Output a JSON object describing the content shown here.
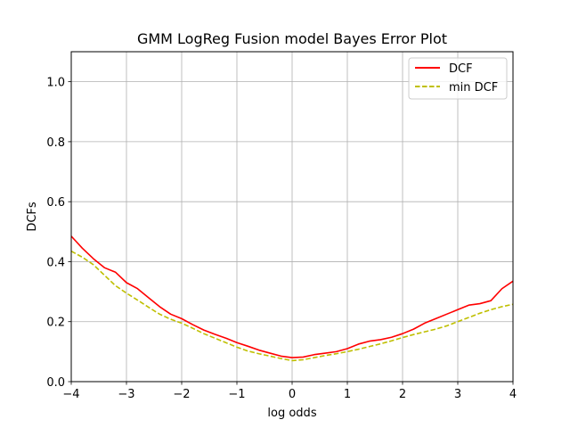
{
  "chart_data": {
    "type": "line",
    "title": "GMM LogReg Fusion model Bayes Error Plot",
    "xlabel": "log odds",
    "ylabel": "DCFs",
    "xlim": [
      -4,
      4
    ],
    "ylim": [
      0,
      1.1
    ],
    "xticks": [
      -4,
      -3,
      -2,
      -1,
      0,
      1,
      2,
      3,
      4
    ],
    "yticks": [
      0.0,
      0.2,
      0.4,
      0.6,
      0.8,
      1.0
    ],
    "xtick_labels": [
      "−4",
      "−3",
      "−2",
      "−1",
      "0",
      "1",
      "2",
      "3",
      "4"
    ],
    "ytick_labels": [
      "0.0",
      "0.2",
      "0.4",
      "0.6",
      "0.8",
      "1.0"
    ],
    "grid": true,
    "legend_position": "top-right",
    "series": [
      {
        "name": "DCF",
        "color": "#ff0000",
        "style": "solid",
        "x": [
          -4.0,
          -3.8,
          -3.6,
          -3.4,
          -3.2,
          -3.0,
          -2.8,
          -2.6,
          -2.4,
          -2.2,
          -2.0,
          -1.8,
          -1.6,
          -1.4,
          -1.2,
          -1.0,
          -0.8,
          -0.6,
          -0.4,
          -0.2,
          0.0,
          0.2,
          0.4,
          0.6,
          0.8,
          1.0,
          1.2,
          1.4,
          1.6,
          1.8,
          2.0,
          2.2,
          2.4,
          2.6,
          2.8,
          3.0,
          3.2,
          3.4,
          3.6,
          3.8,
          4.0
        ],
        "values": [
          0.485,
          0.445,
          0.41,
          0.38,
          0.365,
          0.33,
          0.31,
          0.28,
          0.25,
          0.225,
          0.21,
          0.19,
          0.172,
          0.158,
          0.145,
          0.13,
          0.118,
          0.105,
          0.095,
          0.085,
          0.08,
          0.082,
          0.09,
          0.095,
          0.1,
          0.11,
          0.125,
          0.135,
          0.14,
          0.148,
          0.16,
          0.175,
          0.195,
          0.21,
          0.225,
          0.24,
          0.255,
          0.26,
          0.27,
          0.31,
          0.335
        ]
      },
      {
        "name": "min DCF",
        "color": "#bfbf00",
        "style": "dashed",
        "x": [
          -4.0,
          -3.8,
          -3.6,
          -3.4,
          -3.2,
          -3.0,
          -2.8,
          -2.6,
          -2.4,
          -2.2,
          -2.0,
          -1.8,
          -1.6,
          -1.4,
          -1.2,
          -1.0,
          -0.8,
          -0.6,
          -0.4,
          -0.2,
          0.0,
          0.2,
          0.4,
          0.6,
          0.8,
          1.0,
          1.2,
          1.4,
          1.6,
          1.8,
          2.0,
          2.2,
          2.4,
          2.6,
          2.8,
          3.0,
          3.2,
          3.4,
          3.6,
          3.8,
          4.0
        ],
        "values": [
          0.435,
          0.415,
          0.39,
          0.355,
          0.32,
          0.295,
          0.272,
          0.248,
          0.225,
          0.208,
          0.195,
          0.178,
          0.16,
          0.145,
          0.13,
          0.115,
          0.102,
          0.093,
          0.085,
          0.077,
          0.07,
          0.073,
          0.08,
          0.087,
          0.093,
          0.1,
          0.108,
          0.117,
          0.126,
          0.136,
          0.147,
          0.157,
          0.166,
          0.175,
          0.186,
          0.2,
          0.214,
          0.228,
          0.24,
          0.25,
          0.258
        ]
      }
    ]
  }
}
